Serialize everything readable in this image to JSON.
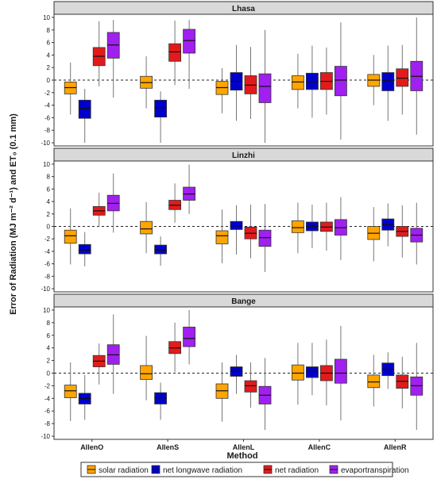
{
  "chart_data": {
    "type": "box",
    "ylabel": "Error of Radiation (MJ m⁻² d⁻¹) and ET₀ (0.1 mm)",
    "xlabel": "Method",
    "ylim": [
      -10.5,
      10.5
    ],
    "yticks": [
      -10,
      -8,
      -6,
      -4,
      -2,
      0,
      2,
      4,
      6,
      8,
      10
    ],
    "categories": [
      "AllenO",
      "AllenS",
      "AllenL",
      "AllenC",
      "AllenR"
    ],
    "reference_line": 0,
    "series": [
      {
        "name": "solar radiation",
        "color": "#ffa500"
      },
      {
        "name": "net longwave radiation",
        "color": "#0000cd"
      },
      {
        "name": "net radiation",
        "color": "#e31a1c"
      },
      {
        "name": "evaportranspiration",
        "color": "#a020f0"
      }
    ],
    "panels": [
      {
        "title": "Lhasa",
        "boxes": [
          [
            [
              -5.5,
              -2.2,
              -1.2,
              -0.3,
              2.8
            ],
            [
              -10,
              -6.1,
              -4.5,
              -3.2,
              -1.4
            ],
            [
              -1,
              2.3,
              3.8,
              5.2,
              9.4
            ],
            [
              -2.8,
              3.5,
              5.6,
              7.6,
              9.6
            ]
          ],
          [
            [
              -4.5,
              -1.3,
              -0.4,
              0.6,
              3.8
            ],
            [
              -10,
              -5.9,
              -4.4,
              -3.2,
              -1.8
            ],
            [
              -0.8,
              3,
              4.5,
              5.8,
              9.5
            ],
            [
              -1.4,
              4.3,
              6.3,
              8.1,
              9.6
            ]
          ],
          [
            [
              -5.3,
              -2.3,
              -1.2,
              -0.2,
              1.9
            ],
            [
              -6.5,
              -1.6,
              -0.2,
              1.2,
              5.6
            ],
            [
              -6.2,
              -2.2,
              -0.8,
              0.7,
              5.3
            ],
            [
              -10,
              -3.6,
              -1,
              1,
              8
            ]
          ],
          [
            [
              -4.5,
              -1.5,
              -0.3,
              0.7,
              4.2
            ],
            [
              -6,
              -1.5,
              -0.3,
              1.1,
              5.5
            ],
            [
              -5.5,
              -1.5,
              -0.2,
              1.2,
              5.2
            ],
            [
              -9.5,
              -2.5,
              0,
              2.2,
              9.2
            ]
          ],
          [
            [
              -4,
              -1,
              0,
              0.9,
              4
            ],
            [
              -6.5,
              -1.7,
              -0.1,
              1.2,
              5.5
            ],
            [
              -5.5,
              -1,
              0.3,
              1.8,
              5.6
            ],
            [
              -8.7,
              -1.7,
              0.6,
              3,
              10
            ]
          ]
        ]
      },
      {
        "title": "Linzhi",
        "boxes": [
          [
            [
              -6.1,
              -2.7,
              -1.5,
              -0.6,
              2.9
            ],
            [
              -6.4,
              -4.4,
              -3.8,
              -2.9,
              -0.9
            ],
            [
              -0.1,
              1.8,
              2.5,
              3.2,
              5.4
            ],
            [
              -1,
              2.5,
              3.7,
              5,
              8.5
            ]
          ],
          [
            [
              -4.3,
              -1.2,
              -0.4,
              0.8,
              3.9
            ],
            [
              -6.3,
              -4.4,
              -3.8,
              -3,
              -1.6
            ],
            [
              0.6,
              2.7,
              3.4,
              4.2,
              6.9
            ],
            [
              2,
              4.2,
              5.2,
              6.3,
              9.9
            ]
          ],
          [
            [
              -5.9,
              -2.8,
              -1.5,
              -0.7,
              2.7
            ],
            [
              -4.5,
              -0.5,
              0.1,
              0.8,
              3.4
            ],
            [
              -5.1,
              -2,
              -1.1,
              -0.1,
              3.5
            ],
            [
              -7.3,
              -3.2,
              -1.8,
              -0.6,
              3.6
            ]
          ],
          [
            [
              -4.3,
              -1,
              -0.2,
              0.9,
              3.8
            ],
            [
              -3.5,
              -0.7,
              0,
              0.7,
              3.5
            ],
            [
              -3.9,
              -0.8,
              -0.1,
              0.7,
              3.8
            ],
            [
              -5.4,
              -1.4,
              -0.2,
              1.1,
              4.7
            ]
          ],
          [
            [
              -5.6,
              -2.1,
              -1.1,
              0,
              3.1
            ],
            [
              -3.2,
              -0.6,
              0.3,
              1.2,
              3.7
            ],
            [
              -5,
              -1.6,
              -0.8,
              0,
              3.4
            ],
            [
              -6.1,
              -2.5,
              -1.4,
              -0.3,
              3.8
            ]
          ]
        ]
      },
      {
        "title": "Bange",
        "boxes": [
          [
            [
              -7.6,
              -3.9,
              -2.8,
              -1.9,
              1.7
            ],
            [
              -7.4,
              -4.9,
              -4,
              -3.2,
              -0.3
            ],
            [
              -1.8,
              1,
              1.9,
              2.8,
              4.7
            ],
            [
              -3.3,
              1.4,
              2.9,
              4.5,
              9.3
            ]
          ],
          [
            [
              -4.3,
              -1,
              -0.1,
              1.2,
              5.9
            ],
            [
              -7.4,
              -4.9,
              -3.9,
              -3.1,
              -1.5
            ],
            [
              0.2,
              3.1,
              4,
              5,
              8
            ],
            [
              1.4,
              4.2,
              5.5,
              7.3,
              10
            ]
          ],
          [
            [
              -7.7,
              -4,
              -2.8,
              -1.7,
              1.7
            ],
            [
              -3.3,
              -0.5,
              0.3,
              1,
              2.9
            ],
            [
              -5.5,
              -3,
              -2,
              -1.2,
              1.7
            ],
            [
              -9,
              -4.9,
              -3.5,
              -2.1,
              2.4
            ]
          ],
          [
            [
              -5,
              -1.1,
              0,
              1.3,
              4.8
            ],
            [
              -3.5,
              -0.7,
              0.3,
              1,
              4.8
            ],
            [
              -5.1,
              -1.2,
              0,
              1.2,
              5.3
            ],
            [
              -7.5,
              -1.6,
              0,
              2.2,
              7.5
            ]
          ],
          [
            [
              -5.3,
              -2.3,
              -1.4,
              -0.3,
              2.9
            ],
            [
              -2.5,
              -0.4,
              0.6,
              1.6,
              3.3
            ],
            [
              -5.6,
              -2.4,
              -1.3,
              -0.3,
              2.6
            ],
            [
              -9,
              -3.5,
              -2,
              -0.6,
              4.8
            ]
          ]
        ]
      }
    ]
  }
}
